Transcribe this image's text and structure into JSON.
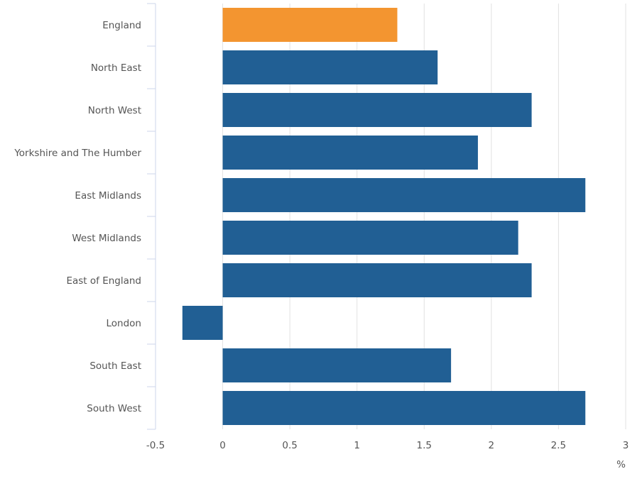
{
  "chart_data": {
    "type": "bar",
    "orientation": "horizontal",
    "categories": [
      "England",
      "North East",
      "North West",
      "Yorkshire and The Humber",
      "East Midlands",
      "West Midlands",
      "East of England",
      "London",
      "South East",
      "South West"
    ],
    "values": [
      1.3,
      1.6,
      2.3,
      1.9,
      2.7,
      2.2,
      2.3,
      -0.3,
      1.7,
      2.7
    ],
    "bar_colors": [
      "#f39530",
      "#215f94",
      "#215f94",
      "#215f94",
      "#215f94",
      "#215f94",
      "#215f94",
      "#215f94",
      "#215f94",
      "#215f94"
    ],
    "xlim": [
      -0.5,
      3
    ],
    "xticks": [
      "-0.5",
      "0",
      "0.5",
      "1",
      "1.5",
      "2",
      "2.5",
      "3"
    ],
    "xlabel": "%",
    "grid": "vertical",
    "legend": "none"
  }
}
